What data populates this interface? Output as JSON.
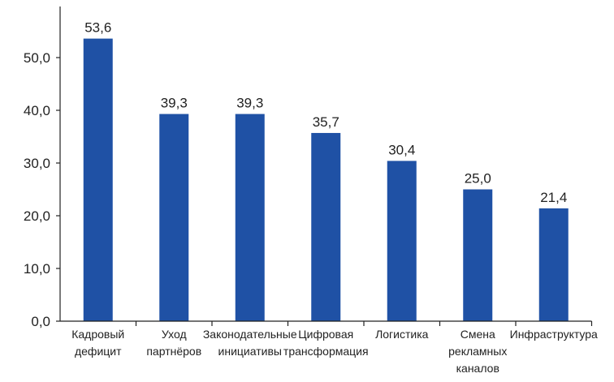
{
  "chart_data": {
    "type": "bar",
    "categories": [
      [
        "Кадровый",
        "дефицит"
      ],
      [
        "Уход",
        "партнёров"
      ],
      [
        "Законодательные",
        "инициативы"
      ],
      [
        "Цифровая",
        "трансформация"
      ],
      [
        "Логистика"
      ],
      [
        "Смена",
        "рекламных",
        "каналов"
      ],
      [
        "Инфраструктура"
      ]
    ],
    "values": [
      53.6,
      39.3,
      39.3,
      35.7,
      30.4,
      25.0,
      21.4
    ],
    "value_labels": [
      "53,6",
      "39,3",
      "39,3",
      "35,7",
      "30,4",
      "25,0",
      "21,4"
    ],
    "yticks": [
      0,
      10,
      20,
      30,
      40,
      50
    ],
    "ytick_labels": [
      "0,0",
      "10,0",
      "20,0",
      "30,0",
      "40,0",
      "50,0"
    ],
    "ylim": [
      0,
      60
    ],
    "title": "",
    "xlabel": "",
    "ylabel": "",
    "grid": false,
    "bar_color": "#1f51a5",
    "axis_color": "#222222"
  }
}
